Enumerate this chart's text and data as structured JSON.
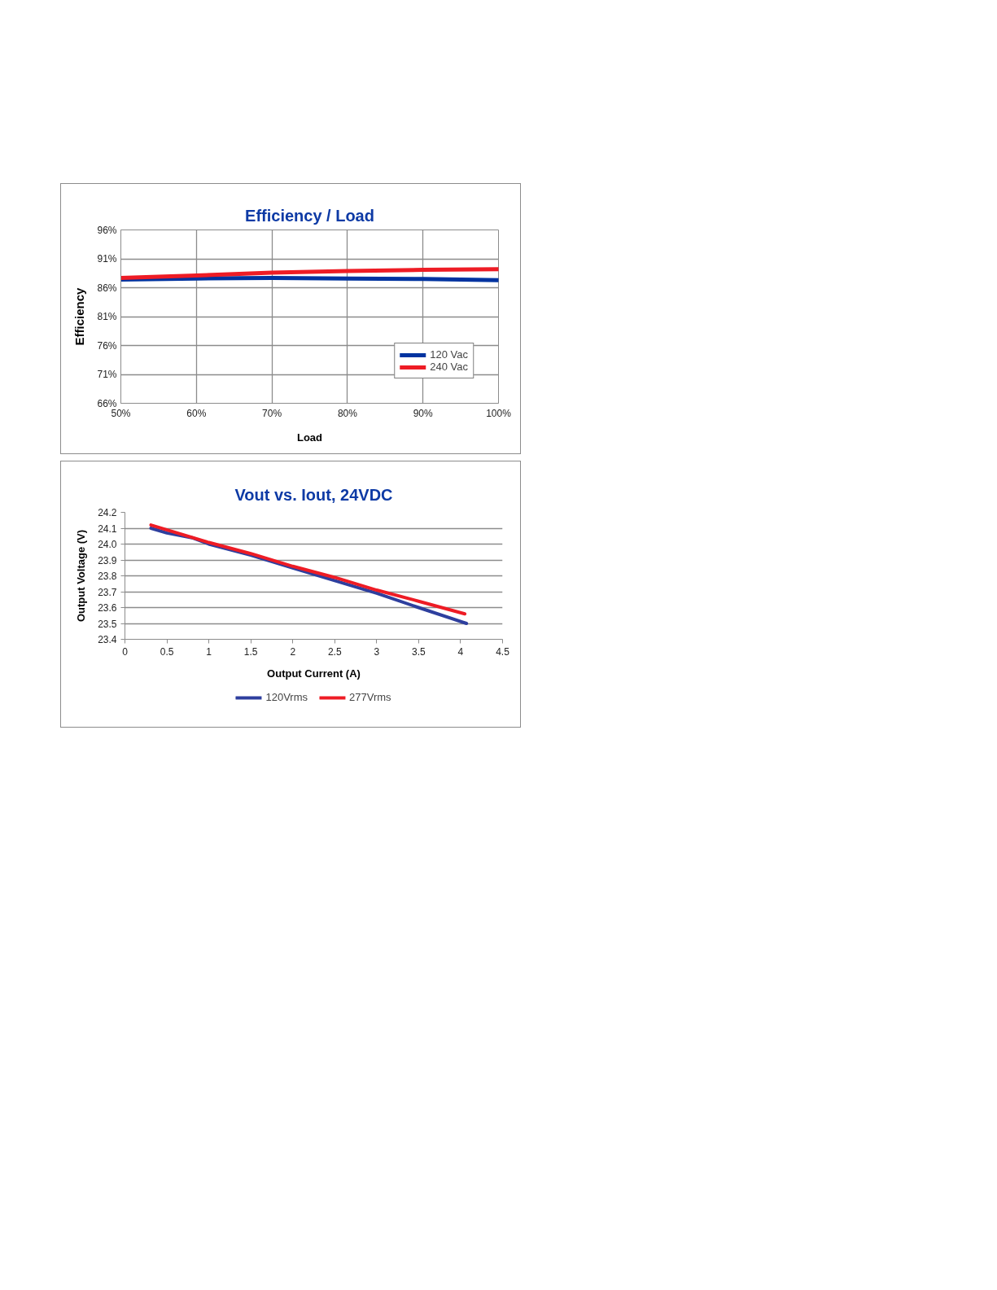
{
  "chart_data": [
    {
      "type": "line",
      "title": "Efficiency / Load",
      "xlabel": "Load",
      "ylabel": "Efficiency",
      "x": [
        50,
        60,
        70,
        80,
        90,
        100
      ],
      "series": [
        {
          "name": "120 Vac",
          "color": "#0033a0",
          "values": [
            87.4,
            87.6,
            87.7,
            87.6,
            87.5,
            87.3
          ]
        },
        {
          "name": "240 Vac",
          "color": "#ee1c25",
          "values": [
            87.7,
            88.1,
            88.6,
            88.9,
            89.1,
            89.2
          ]
        }
      ],
      "xlim": [
        50,
        100
      ],
      "xticks": [
        {
          "value": 50,
          "label": "50%"
        },
        {
          "value": 60,
          "label": "60%"
        },
        {
          "value": 70,
          "label": "70%"
        },
        {
          "value": 80,
          "label": "80%"
        },
        {
          "value": 90,
          "label": "90%"
        },
        {
          "value": 100,
          "label": "100%"
        }
      ],
      "ylim": [
        66,
        96
      ],
      "yticks": [
        {
          "value": 66,
          "label": "66%"
        },
        {
          "value": 71,
          "label": "71%"
        },
        {
          "value": 76,
          "label": "76%"
        },
        {
          "value": 81,
          "label": "81%"
        },
        {
          "value": 86,
          "label": "86%"
        },
        {
          "value": 91,
          "label": "91%"
        },
        {
          "value": 96,
          "label": "96%"
        }
      ],
      "grid": true,
      "legend": "bottom right"
    },
    {
      "type": "line",
      "title": "Vout vs. Iout, 24VDC",
      "xlabel": "Output Current (A)",
      "ylabel": "Output Voltage (V)",
      "series": [
        {
          "name": "120Vrms",
          "color": "#2e3f9e",
          "x": [
            0.31,
            0.5,
            0.8,
            1.0,
            1.5,
            2.0,
            2.5,
            3.0,
            3.5,
            4.07
          ],
          "values": [
            24.1,
            24.07,
            24.04,
            24.0,
            23.93,
            23.85,
            23.77,
            23.69,
            23.6,
            23.5
          ]
        },
        {
          "name": "277Vrms",
          "color": "#ee1c25",
          "x": [
            0.31,
            1.0,
            1.5,
            2.0,
            2.5,
            3.0,
            3.5,
            4.05
          ],
          "values": [
            24.12,
            24.01,
            23.94,
            23.86,
            23.79,
            23.71,
            23.64,
            23.56
          ]
        }
      ],
      "xlim": [
        0,
        4.5
      ],
      "xticks": [
        0,
        0.5,
        1,
        1.5,
        2,
        2.5,
        3,
        3.5,
        4,
        4.5
      ],
      "ylim": [
        23.4,
        24.2
      ],
      "yticks": [
        23.4,
        23.5,
        23.6,
        23.7,
        23.8,
        23.9,
        {
          "value": 24,
          "label": "24.0"
        },
        24.1,
        24.2
      ],
      "grid": "y",
      "legend": "bottom"
    }
  ]
}
